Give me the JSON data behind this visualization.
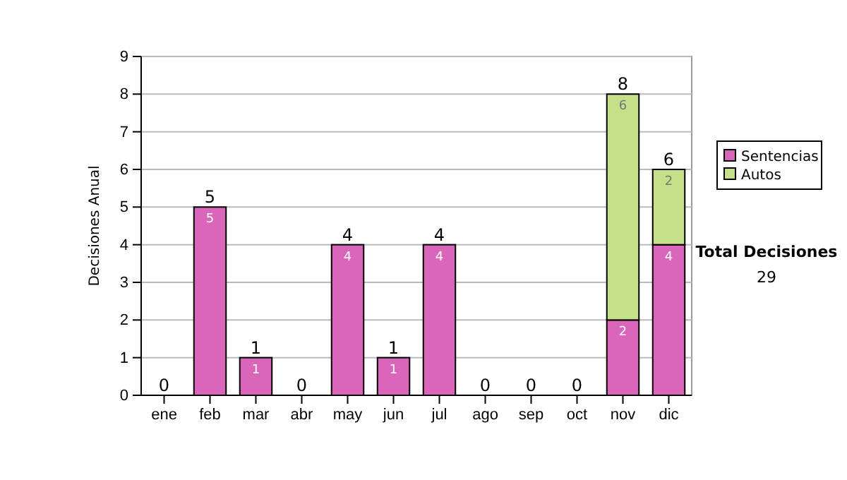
{
  "chart_data": {
    "type": "bar",
    "stacked": true,
    "ylabel": "Decisiones Anual",
    "categories": [
      "ene",
      "feb",
      "mar",
      "abr",
      "may",
      "jun",
      "jul",
      "ago",
      "sep",
      "oct",
      "nov",
      "dic"
    ],
    "series": [
      {
        "name": "Sentencias",
        "color": "#d966b8",
        "values": [
          0,
          5,
          1,
          0,
          4,
          1,
          4,
          0,
          0,
          0,
          2,
          4
        ],
        "value_labels": [
          null,
          "5",
          "1",
          null,
          "4",
          "1",
          "4",
          null,
          null,
          null,
          "2",
          "4"
        ]
      },
      {
        "name": "Autos",
        "color": "#c6e08a",
        "values": [
          0,
          0,
          0,
          0,
          0,
          0,
          0,
          0,
          0,
          0,
          6,
          2
        ],
        "value_labels": [
          null,
          null,
          null,
          null,
          null,
          null,
          null,
          null,
          null,
          null,
          "6",
          "2"
        ]
      }
    ],
    "totals": [
      "0",
      "5",
      "1",
      "0",
      "4",
      "1",
      "4",
      "0",
      "0",
      "0",
      "8",
      "6"
    ],
    "ylim": [
      0,
      9
    ],
    "yticks": [
      0,
      1,
      2,
      3,
      4,
      5,
      6,
      7,
      8,
      9
    ],
    "grid": "y",
    "legend": "right",
    "annotations": [
      "Total Decisiones",
      "29"
    ]
  }
}
